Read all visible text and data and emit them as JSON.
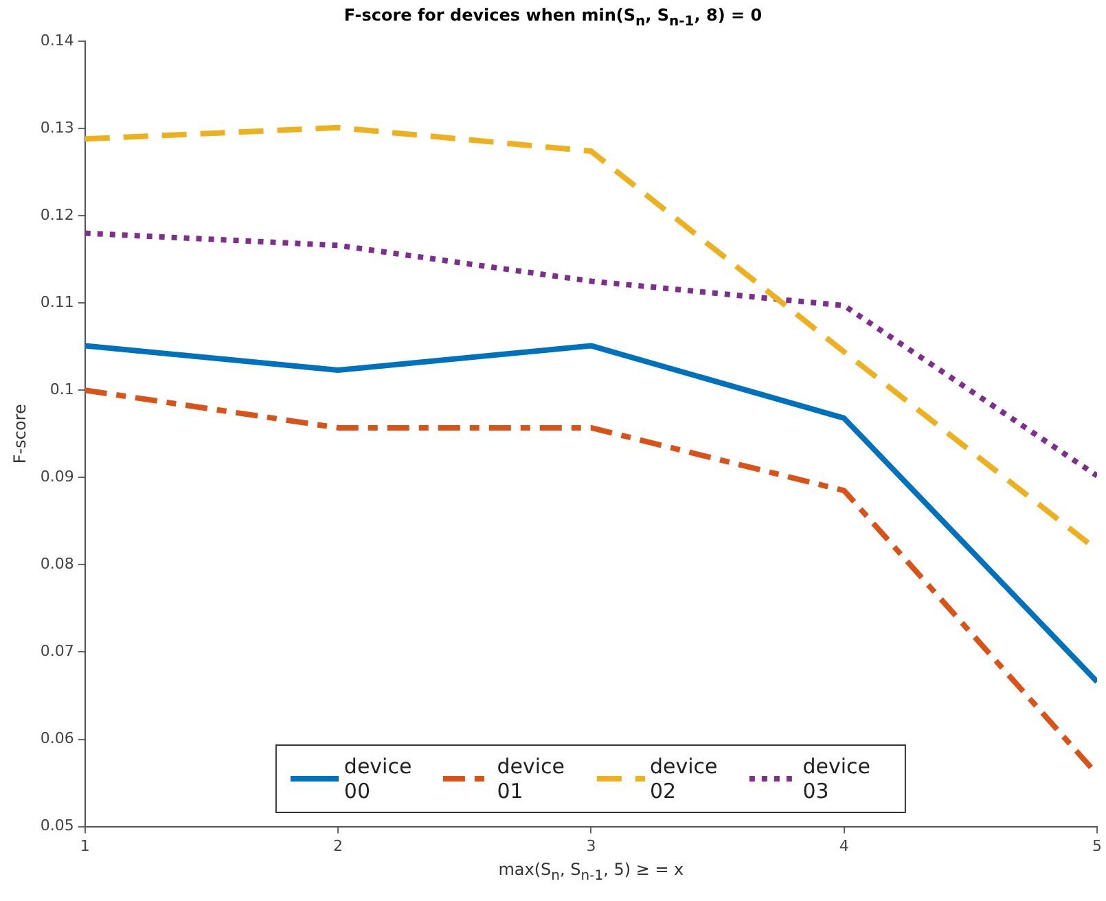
{
  "chart_data": {
    "type": "line",
    "title": "F-score for devices when min(S$_{n}$, S$_{n-1}$, 8) = 0",
    "xlabel": "max(S$_{n}$, S$_{n-1}$, 5) ≥ = x",
    "ylabel": "F-score",
    "x": [
      1,
      2,
      3,
      4,
      5
    ],
    "xlim": [
      1,
      5
    ],
    "xticks": [
      1,
      2,
      3,
      4,
      5
    ],
    "ylim": [
      0.05,
      0.14
    ],
    "yticks": [
      0.05,
      0.06,
      0.07,
      0.08,
      0.09,
      0.1,
      0.11,
      0.12,
      0.13,
      0.14
    ],
    "grid": false,
    "legend": "bottom",
    "marker": "none",
    "series": [
      {
        "name": "device 00",
        "color": "#0072bd",
        "line_style": "solid",
        "values": [
          0.1051,
          0.1023,
          0.1051,
          0.0968,
          0.0666
        ]
      },
      {
        "name": "device 01",
        "color": "#d95319",
        "line_style": "dashdot",
        "values": [
          0.1,
          0.0957,
          0.0957,
          0.0885,
          0.056
        ]
      },
      {
        "name": "device 02",
        "color": "#edb120",
        "line_style": "dashed",
        "values": [
          0.1288,
          0.1301,
          0.1274,
          0.1044,
          0.0817
        ]
      },
      {
        "name": "device 03",
        "color": "#7e2f8e",
        "line_style": "dotted",
        "values": [
          0.118,
          0.1166,
          0.1125,
          0.1097,
          0.0902
        ]
      }
    ]
  }
}
